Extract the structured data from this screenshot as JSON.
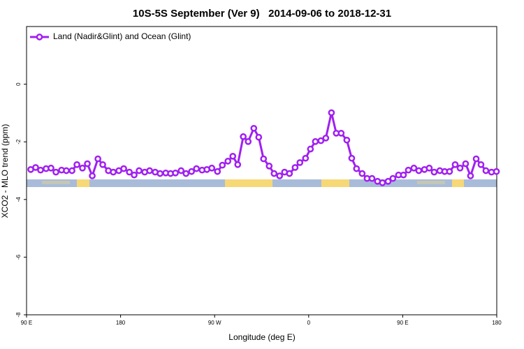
{
  "chart_data": {
    "type": "line",
    "title": "10S-5S September (Ver 9)   2014-09-06 to 2018-12-31",
    "x_label": "Longitude (deg E)",
    "y_label": "XCO2 - MLO trend (ppm)",
    "xlim": [
      90,
      540
    ],
    "xticks": [
      {
        "value": 90,
        "label": "90 E"
      },
      180,
      {
        "value": 270,
        "label": "90 W"
      },
      {
        "value": 360,
        "label": "0"
      },
      {
        "value": 450,
        "label": "90 E"
      },
      {
        "value": 540,
        "label": "180"
      }
    ],
    "ylim": [
      -8,
      2
    ],
    "yticks": [
      -8,
      -6,
      -4,
      -2,
      0
    ],
    "grid": false,
    "legend": "upper left",
    "x": [
      94.0,
      98.7,
      103.4,
      108.7,
      113.4,
      118.1,
      123.5,
      128.1,
      133.5,
      138.2,
      143.5,
      148.2,
      152.9,
      158.3,
      162.9,
      168.3,
      173.0,
      178.3,
      183.0,
      188.4,
      193.0,
      197.7,
      203.1,
      207.8,
      213.1,
      217.8,
      223.2,
      227.8,
      232.5,
      237.9,
      242.6,
      247.9,
      252.6,
      258.0,
      262.6,
      267.3,
      272.7,
      277.4,
      282.7,
      287.4,
      292.1,
      297.4,
      302.1,
      307.5,
      312.2,
      316.8,
      322.2,
      326.9,
      332.2,
      336.9,
      341.6,
      347.0,
      351.6,
      357.0,
      361.7,
      366.4,
      371.7,
      376.4,
      381.8,
      386.4,
      391.1,
      396.5,
      401.2,
      405.8,
      411.2,
      415.9,
      420.6,
      425.9,
      430.6,
      436.0,
      440.6,
      446.0,
      450.7,
      455.4,
      460.7,
      465.4,
      470.8,
      475.4,
      480.1,
      485.5,
      490.2,
      494.8,
      500.2,
      504.9,
      510.2,
      514.9,
      520.3,
      524.9,
      529.6,
      535.0,
      539.7
    ],
    "series": [
      {
        "name": "Land (Nadir&Glint) and Ocean (Glint)",
        "color": "#a020f0",
        "values": [
          -2.96,
          -2.89,
          -2.98,
          -2.93,
          -2.91,
          -3.05,
          -2.98,
          -3.0,
          -3.0,
          -2.79,
          -2.91,
          -2.76,
          -3.18,
          -2.59,
          -2.79,
          -3.0,
          -3.05,
          -3.0,
          -2.93,
          -3.05,
          -3.15,
          -3.0,
          -3.05,
          -3.0,
          -3.05,
          -3.1,
          -3.08,
          -3.1,
          -3.08,
          -3.0,
          -3.1,
          -3.03,
          -2.93,
          -2.98,
          -2.96,
          -2.91,
          -3.03,
          -2.81,
          -2.67,
          -2.5,
          -2.79,
          -1.82,
          -1.99,
          -1.53,
          -1.84,
          -2.59,
          -2.84,
          -3.1,
          -3.18,
          -3.05,
          -3.1,
          -2.89,
          -2.72,
          -2.57,
          -2.25,
          -1.99,
          -1.96,
          -1.87,
          -0.99,
          -1.7,
          -1.7,
          -1.94,
          -2.57,
          -2.93,
          -3.1,
          -3.27,
          -3.27,
          -3.37,
          -3.42,
          -3.37,
          -3.27,
          -3.15,
          -3.15,
          -2.98,
          -2.91,
          -3.0,
          -2.96,
          -2.91,
          -3.05,
          -3.0,
          -3.03,
          -3.03,
          -2.79,
          -2.91,
          -2.76,
          -3.18,
          -2.59,
          -2.79,
          -3.0,
          -3.05,
          -3.03
        ]
      }
    ]
  }
}
